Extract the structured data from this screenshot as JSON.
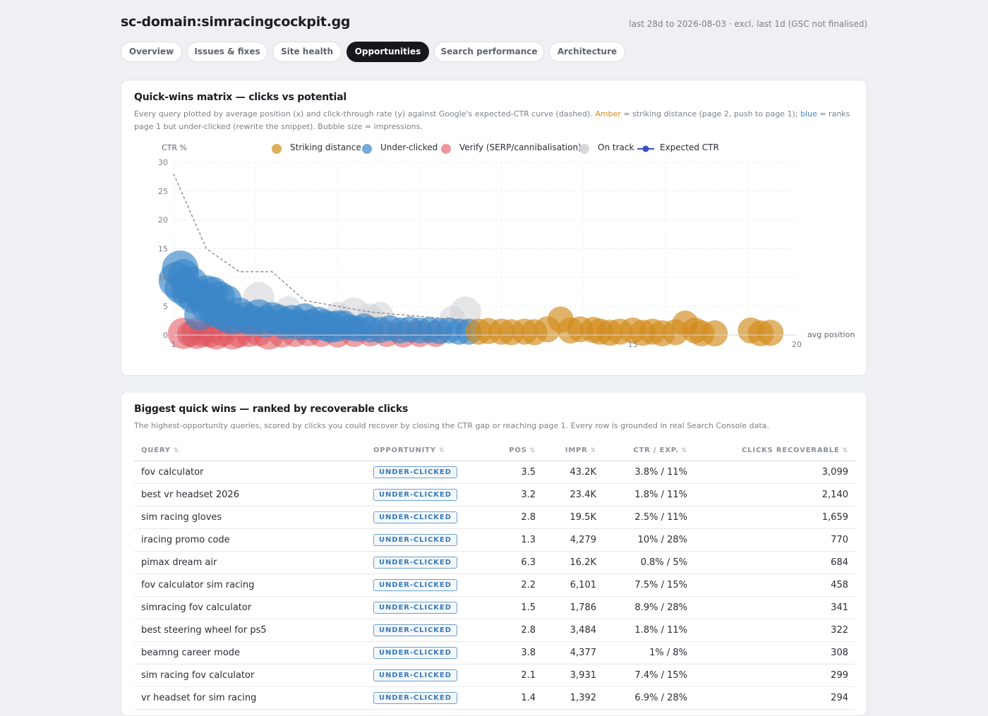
{
  "header": {
    "site": "sc-domain:simracingcockpit.gg",
    "range": "last 28d to 2026-08-03 · excl. last 1d (GSC not finalised)"
  },
  "tabs": [
    {
      "label": "Overview",
      "active": false
    },
    {
      "label": "Issues & fixes",
      "active": false
    },
    {
      "label": "Site health",
      "active": false
    },
    {
      "label": "Opportunities",
      "active": true
    },
    {
      "label": "Search performance",
      "active": false
    },
    {
      "label": "Architecture",
      "active": false
    }
  ],
  "matrix": {
    "title": "Quick-wins matrix — clicks vs potential",
    "desc_a": "Every query plotted by average position (x) and click-through rate (y) against Google's expected-CTR curve (dashed). ",
    "desc_amber": "Amber",
    "desc_b": " = striking distance (page 2, push to page 1); ",
    "desc_blue": "blue",
    "desc_c": " = ranks page 1 but under-clicked (rewrite the snippet). Bubble size = impressions."
  },
  "chart_data": {
    "type": "scatter",
    "ylabel": "CTR %",
    "xlabel": "avg position",
    "xlim": [
      1,
      20
    ],
    "ylim": [
      0,
      30
    ],
    "y_ticks": [
      0,
      5,
      10,
      15,
      20,
      25,
      30
    ],
    "x_ticks": [
      1,
      15,
      20
    ],
    "grid": true,
    "legend_position": "top",
    "colors": {
      "striking": "#d18a1a",
      "under": "#3a86c8",
      "verify": "#e0525c",
      "ontrack": "#cfd1d5",
      "expected": "#3b4fc7"
    },
    "legend": [
      {
        "label": "Striking distance",
        "key": "striking"
      },
      {
        "label": "Under-clicked",
        "key": "under"
      },
      {
        "label": "Verify (SERP/cannibalisation)",
        "key": "verify"
      },
      {
        "label": "On track",
        "key": "ontrack"
      },
      {
        "label": "Expected CTR",
        "key": "expected"
      }
    ],
    "expected_ctr": [
      [
        1,
        28
      ],
      [
        2,
        15
      ],
      [
        3,
        11
      ],
      [
        4,
        11
      ],
      [
        5,
        6
      ],
      [
        6,
        5
      ],
      [
        7,
        4
      ],
      [
        8,
        3.5
      ],
      [
        9,
        3
      ],
      [
        10,
        2.5
      ]
    ],
    "series": [
      {
        "key": "verify",
        "points": [
          [
            1.3,
            0.3,
            6
          ],
          [
            1.5,
            0.2,
            5
          ],
          [
            1.7,
            0.3,
            6
          ],
          [
            1.9,
            0.2,
            5
          ],
          [
            2.1,
            0.1,
            5
          ],
          [
            2.3,
            0.2,
            6
          ],
          [
            2.5,
            0.3,
            5
          ],
          [
            2.8,
            0.2,
            6
          ],
          [
            3.0,
            0.1,
            5
          ],
          [
            3.3,
            0.2,
            5
          ],
          [
            3.6,
            0.3,
            5
          ],
          [
            3.9,
            0.2,
            6
          ],
          [
            4.3,
            0.1,
            5
          ],
          [
            4.7,
            0.2,
            5
          ],
          [
            5.1,
            0.3,
            5
          ],
          [
            5.5,
            0.2,
            5
          ],
          [
            6.0,
            0.1,
            5
          ],
          [
            6.5,
            0.2,
            5
          ],
          [
            7.0,
            0.3,
            5
          ],
          [
            7.5,
            0.2,
            5
          ],
          [
            8.0,
            0.1,
            5
          ],
          [
            8.5,
            0.2,
            5
          ],
          [
            9.0,
            0.2,
            5
          ]
        ]
      },
      {
        "key": "ontrack",
        "points": [
          [
            3.6,
            6.5,
            6
          ],
          [
            4.5,
            4.5,
            5
          ],
          [
            6.0,
            3.5,
            5
          ],
          [
            6.5,
            3.8,
            6
          ],
          [
            7.0,
            3.2,
            5
          ],
          [
            7.3,
            3.5,
            5
          ],
          [
            9.9,
            4.0,
            6
          ],
          [
            9.5,
            2.8,
            5
          ]
        ]
      },
      {
        "key": "under",
        "points": [
          [
            1.2,
            11.5,
            7
          ],
          [
            1.1,
            9.5,
            7
          ],
          [
            1.3,
            10.5,
            6
          ],
          [
            1.2,
            8.2,
            6
          ],
          [
            1.4,
            7.4,
            6
          ],
          [
            1.5,
            8.8,
            7
          ],
          [
            1.6,
            6.5,
            6
          ],
          [
            1.8,
            7.0,
            6
          ],
          [
            2.0,
            7.2,
            7
          ],
          [
            2.2,
            7.4,
            6
          ],
          [
            2.4,
            6.6,
            6
          ],
          [
            2.6,
            6.0,
            6
          ],
          [
            1.8,
            3.5,
            6
          ],
          [
            2.0,
            5.0,
            6
          ],
          [
            2.2,
            4.5,
            6
          ],
          [
            2.4,
            3.8,
            6
          ],
          [
            2.6,
            3.2,
            6
          ],
          [
            2.8,
            2.8,
            6
          ],
          [
            3.0,
            3.8,
            6
          ],
          [
            3.2,
            3.0,
            6
          ],
          [
            3.4,
            2.5,
            6
          ],
          [
            3.6,
            3.5,
            6
          ],
          [
            3.8,
            2.3,
            6
          ],
          [
            4.0,
            3.0,
            6
          ],
          [
            4.2,
            2.6,
            6
          ],
          [
            4.4,
            2.0,
            6
          ],
          [
            4.6,
            2.5,
            6
          ],
          [
            4.8,
            1.8,
            6
          ],
          [
            5.0,
            2.8,
            6
          ],
          [
            5.2,
            1.8,
            6
          ],
          [
            5.4,
            2.2,
            6
          ],
          [
            5.6,
            1.7,
            6
          ],
          [
            5.8,
            1.4,
            6
          ],
          [
            6.0,
            1.6,
            6
          ],
          [
            6.2,
            2.0,
            5
          ],
          [
            6.4,
            1.3,
            5
          ],
          [
            6.6,
            1.1,
            5
          ],
          [
            6.8,
            1.5,
            5
          ],
          [
            7.0,
            1.0,
            5
          ],
          [
            7.3,
            0.9,
            5
          ],
          [
            7.6,
            1.2,
            5
          ],
          [
            7.9,
            0.8,
            5
          ],
          [
            8.2,
            1.0,
            5
          ],
          [
            8.5,
            0.8,
            5
          ],
          [
            8.8,
            0.9,
            5
          ],
          [
            9.1,
            0.7,
            5
          ],
          [
            9.4,
            0.8,
            5
          ],
          [
            9.7,
            0.6,
            5
          ],
          [
            10.0,
            0.6,
            5
          ]
        ]
      },
      {
        "key": "striking",
        "points": [
          [
            10.3,
            0.6,
            5
          ],
          [
            10.6,
            0.7,
            5
          ],
          [
            11.0,
            0.6,
            5
          ],
          [
            11.3,
            0.5,
            5
          ],
          [
            11.7,
            0.6,
            5
          ],
          [
            12.0,
            0.5,
            5
          ],
          [
            12.4,
            1.0,
            5
          ],
          [
            12.8,
            2.7,
            5
          ],
          [
            13.1,
            0.8,
            5
          ],
          [
            13.4,
            1.0,
            5
          ],
          [
            13.8,
            0.9,
            5
          ],
          [
            14.0,
            0.6,
            5
          ],
          [
            14.3,
            0.4,
            5
          ],
          [
            14.6,
            0.6,
            5
          ],
          [
            15.0,
            0.8,
            5
          ],
          [
            15.3,
            0.4,
            5
          ],
          [
            15.6,
            0.6,
            5
          ],
          [
            15.9,
            0.3,
            5
          ],
          [
            16.3,
            0.5,
            5
          ],
          [
            16.6,
            2.0,
            5
          ],
          [
            16.9,
            0.8,
            5
          ],
          [
            17.1,
            0.3,
            5
          ],
          [
            17.5,
            0.3,
            5
          ],
          [
            18.6,
            0.8,
            5
          ],
          [
            18.9,
            0.3,
            5
          ],
          [
            19.2,
            0.4,
            5
          ]
        ]
      }
    ]
  },
  "wins": {
    "title": "Biggest quick wins — ranked by recoverable clicks",
    "desc": "The highest-opportunity queries, scored by clicks you could recover by closing the CTR gap or reaching page 1. Every row is grounded in real Search Console data.",
    "columns": [
      "QUERY",
      "OPPORTUNITY",
      "POS",
      "IMPR",
      "CTR / EXP.",
      "CLICKS RECOVERABLE"
    ],
    "sort_icon": "⇅",
    "rows": [
      {
        "query": "fov calculator",
        "opp": "UNDER-CLICKED",
        "pos": "3.5",
        "impr": "43.2K",
        "ctr": "3.8% / 11%",
        "clicks": "3,099"
      },
      {
        "query": "best vr headset 2026",
        "opp": "UNDER-CLICKED",
        "pos": "3.2",
        "impr": "23.4K",
        "ctr": "1.8% / 11%",
        "clicks": "2,140"
      },
      {
        "query": "sim racing gloves",
        "opp": "UNDER-CLICKED",
        "pos": "2.8",
        "impr": "19.5K",
        "ctr": "2.5% / 11%",
        "clicks": "1,659"
      },
      {
        "query": "iracing promo code",
        "opp": "UNDER-CLICKED",
        "pos": "1.3",
        "impr": "4,279",
        "ctr": "10% / 28%",
        "clicks": "770"
      },
      {
        "query": "pimax dream air",
        "opp": "UNDER-CLICKED",
        "pos": "6.3",
        "impr": "16.2K",
        "ctr": "0.8% / 5%",
        "clicks": "684"
      },
      {
        "query": "fov calculator sim racing",
        "opp": "UNDER-CLICKED",
        "pos": "2.2",
        "impr": "6,101",
        "ctr": "7.5% / 15%",
        "clicks": "458"
      },
      {
        "query": "simracing fov calculator",
        "opp": "UNDER-CLICKED",
        "pos": "1.5",
        "impr": "1,786",
        "ctr": "8.9% / 28%",
        "clicks": "341"
      },
      {
        "query": "best steering wheel for ps5",
        "opp": "UNDER-CLICKED",
        "pos": "2.8",
        "impr": "3,484",
        "ctr": "1.8% / 11%",
        "clicks": "322"
      },
      {
        "query": "beamng career mode",
        "opp": "UNDER-CLICKED",
        "pos": "3.8",
        "impr": "4,377",
        "ctr": "1% / 8%",
        "clicks": "308"
      },
      {
        "query": "sim racing fov calculator",
        "opp": "UNDER-CLICKED",
        "pos": "2.1",
        "impr": "3,931",
        "ctr": "7.4% / 15%",
        "clicks": "299"
      },
      {
        "query": "vr headset for sim racing",
        "opp": "UNDER-CLICKED",
        "pos": "1.4",
        "impr": "1,392",
        "ctr": "6.9% / 28%",
        "clicks": "294"
      }
    ]
  }
}
